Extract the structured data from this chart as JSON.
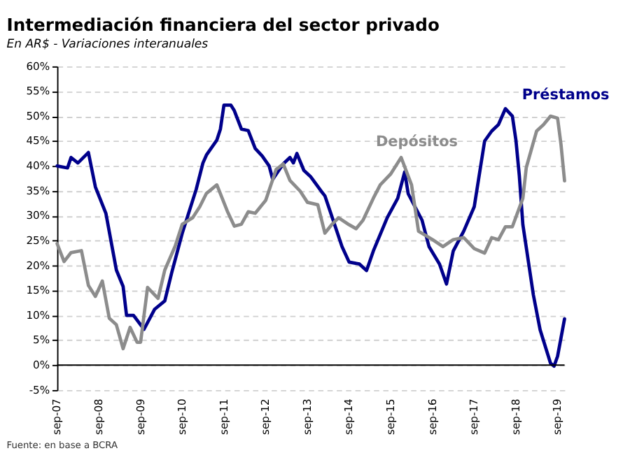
{
  "chart_data": {
    "type": "line",
    "title": "Intermediación financiera del sector privado",
    "subtitle": "En AR$ - Variaciones interanuales",
    "annotations": [
      "Fuente: en base a BCRA"
    ],
    "series": [
      {
        "name": "Préstamos",
        "color": "#00008b",
        "x": [
          "2007-09",
          "2007-12",
          "2008-01",
          "2008-03",
          "2008-06",
          "2008-08",
          "2008-11",
          "2009-02",
          "2009-04",
          "2009-05",
          "2009-07",
          "2009-10",
          "2010-01",
          "2010-04",
          "2010-06",
          "2010-09",
          "2011-01",
          "2011-03",
          "2011-04",
          "2011-07",
          "2011-08",
          "2011-09",
          "2011-11",
          "2011-12",
          "2012-02",
          "2012-04",
          "2012-06",
          "2012-08",
          "2012-10",
          "2012-11",
          "2013-02",
          "2013-04",
          "2013-05",
          "2013-06",
          "2013-08",
          "2013-10",
          "2014-01",
          "2014-02",
          "2014-04",
          "2014-07",
          "2014-09",
          "2014-12",
          "2015-02",
          "2015-04",
          "2015-08",
          "2015-11",
          "2016-01",
          "2016-02",
          "2016-06",
          "2016-08",
          "2016-11",
          "2017-01",
          "2017-03",
          "2017-06",
          "2017-09",
          "2017-12",
          "2018-02",
          "2018-04",
          "2018-06",
          "2018-08",
          "2018-09",
          "2018-10",
          "2018-11",
          "2019-02",
          "2019-04",
          "2019-07",
          "2019-08",
          "2019-09",
          "2019-11"
        ],
        "values": [
          40,
          39.6,
          41.7,
          40.6,
          42.7,
          35.8,
          30.5,
          19.1,
          15.8,
          10,
          10,
          7.2,
          11.2,
          12.9,
          18.6,
          26.5,
          35.3,
          40.6,
          42.2,
          45.2,
          47.4,
          52.2,
          52.2,
          51.1,
          47.4,
          47.1,
          43.5,
          42,
          40,
          37.3,
          40.4,
          41.7,
          40.6,
          42.5,
          39.1,
          37.8,
          34.9,
          34,
          30,
          23.8,
          20.7,
          20.3,
          19,
          22.9,
          29.6,
          33.5,
          38.8,
          34.4,
          29.1,
          23.8,
          20.3,
          16.3,
          22.9,
          26.9,
          31.8,
          45,
          47,
          48.3,
          51.5,
          50,
          45.2,
          38,
          28.2,
          14.1,
          7.1,
          0.4,
          -0.2,
          1.8,
          9.3
        ]
      },
      {
        "name": "Depósitos",
        "color": "#8c8c8c",
        "x": [
          "2007-09",
          "2007-11",
          "2008-01",
          "2008-04",
          "2008-06",
          "2008-08",
          "2008-10",
          "2008-12",
          "2009-02",
          "2009-04",
          "2009-06",
          "2009-08",
          "2009-09",
          "2009-11",
          "2010-02",
          "2010-04",
          "2010-07",
          "2010-09",
          "2010-12",
          "2011-02",
          "2011-04",
          "2011-07",
          "2011-10",
          "2011-12",
          "2012-02",
          "2012-04",
          "2012-06",
          "2012-09",
          "2012-12",
          "2013-02",
          "2013-04",
          "2013-07",
          "2013-09",
          "2013-12",
          "2014-02",
          "2014-04",
          "2014-06",
          "2014-09",
          "2014-11",
          "2015-01",
          "2015-04",
          "2015-06",
          "2015-09",
          "2015-12",
          "2016-03",
          "2016-05",
          "2016-09",
          "2016-12",
          "2017-03",
          "2017-06",
          "2017-09",
          "2017-12",
          "2018-02",
          "2018-04",
          "2018-06",
          "2018-08",
          "2018-11",
          "2018-12",
          "2019-03",
          "2019-05",
          "2019-07",
          "2019-09",
          "2019-10",
          "2019-11"
        ],
        "values": [
          24.4,
          20.8,
          22.6,
          23,
          16,
          13.8,
          16.9,
          9.4,
          8.1,
          3.3,
          7.6,
          4.6,
          4.6,
          15.6,
          13.4,
          19.1,
          23.9,
          28.3,
          29.6,
          31.8,
          34.5,
          36.2,
          30.9,
          27.9,
          28.3,
          30.8,
          30.5,
          33.1,
          39.3,
          40.4,
          37.1,
          34.9,
          32.7,
          32.2,
          26.5,
          28.2,
          29.6,
          28.2,
          27.4,
          29.1,
          33.5,
          36.2,
          38.4,
          41.7,
          36.2,
          26.9,
          25.2,
          23.8,
          25.2,
          25.6,
          23.4,
          22.5,
          25.6,
          25.2,
          27.8,
          27.8,
          33.5,
          39.7,
          47,
          48.3,
          50,
          49.6,
          44.3,
          37
        ]
      }
    ],
    "xlim": [
      "2007-09",
      "2019-11"
    ],
    "xticks": [
      {
        "value": "2007-09",
        "label": "sep-07"
      },
      {
        "value": "2008-09",
        "label": "sep-08"
      },
      {
        "value": "2009-09",
        "label": "sep-09"
      },
      {
        "value": "2010-09",
        "label": "sep-10"
      },
      {
        "value": "2011-09",
        "label": "sep-11"
      },
      {
        "value": "2012-09",
        "label": "sep-12"
      },
      {
        "value": "2013-09",
        "label": "sep-13"
      },
      {
        "value": "2014-09",
        "label": "sep-14"
      },
      {
        "value": "2015-09",
        "label": "sep-15"
      },
      {
        "value": "2016-09",
        "label": "sep-16"
      },
      {
        "value": "2017-09",
        "label": "sep-17"
      },
      {
        "value": "2018-09",
        "label": "sep-18"
      },
      {
        "value": "2019-09",
        "label": "sep-19"
      }
    ],
    "ylim": [
      -5,
      60
    ],
    "yticks": [
      {
        "value": -5,
        "label": "-5%"
      },
      {
        "value": 0,
        "label": "0%"
      },
      {
        "value": 5,
        "label": "5%"
      },
      {
        "value": 10,
        "label": "10%"
      },
      {
        "value": 15,
        "label": "15%"
      },
      {
        "value": 20,
        "label": "20%"
      },
      {
        "value": 25,
        "label": "25%"
      },
      {
        "value": 30,
        "label": "30%"
      },
      {
        "value": 35,
        "label": "35%"
      },
      {
        "value": 40,
        "label": "40%"
      },
      {
        "value": 45,
        "label": "45%"
      },
      {
        "value": 50,
        "label": "50%"
      },
      {
        "value": 55,
        "label": "55%"
      },
      {
        "value": 60,
        "label": "60%"
      }
    ],
    "ref_lines": [
      {
        "axis": "y",
        "value": 0,
        "color": "#000000"
      }
    ],
    "grid": "y",
    "marker": "none",
    "line_style": "solid"
  }
}
